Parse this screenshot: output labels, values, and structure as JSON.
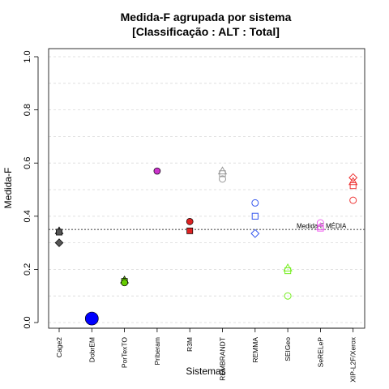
{
  "chart_data": {
    "type": "scatter",
    "title_line1": "Medida-F agrupada por sistema",
    "title_line2": "[Classificação : ALT : Total]",
    "xlabel": "Sistemas",
    "ylabel": "Medida-F",
    "ylim": [
      0,
      1
    ],
    "yticks": [
      "0.0",
      "0.2",
      "0.4",
      "0.6",
      "0.8",
      "1.0"
    ],
    "categories": [
      "Cage2",
      "DobrEM",
      "PorTexTO",
      "Priberam",
      "R3M",
      "REMBRANDT",
      "REMMA",
      "SEIGeo",
      "SeRELeP",
      "XIP-L2F/Xerox"
    ],
    "reference_line": {
      "value": 0.35,
      "label": "Medida-F MÉDIA"
    },
    "grid": true,
    "points": [
      {
        "category": "Cage2",
        "y": 0.345,
        "shape": "triangle",
        "color": "#555555",
        "filled": true
      },
      {
        "category": "Cage2",
        "y": 0.34,
        "shape": "square",
        "color": "#555555",
        "filled": true
      },
      {
        "category": "Cage2",
        "y": 0.3,
        "shape": "diamond",
        "color": "#555555",
        "filled": true
      },
      {
        "category": "DobrEM",
        "y": 0.015,
        "shape": "circle-large",
        "color": "#0000ff",
        "filled": true
      },
      {
        "category": "PorTexTO",
        "y": 0.16,
        "shape": "triangle",
        "color": "#66cc00",
        "filled": true
      },
      {
        "category": "PorTexTO",
        "y": 0.155,
        "shape": "square",
        "color": "#66cc00",
        "filled": true
      },
      {
        "category": "PorTexTO",
        "y": 0.15,
        "shape": "circle",
        "color": "#66cc00",
        "filled": true
      },
      {
        "category": "Priberam",
        "y": 0.57,
        "shape": "circle",
        "color": "#cc33cc",
        "filled": true
      },
      {
        "category": "R3M",
        "y": 0.38,
        "shape": "circle",
        "color": "#dd2222",
        "filled": true
      },
      {
        "category": "R3M",
        "y": 0.345,
        "shape": "square",
        "color": "#dd2222",
        "filled": true
      },
      {
        "category": "REMBRANDT",
        "y": 0.57,
        "shape": "triangle",
        "color": "#999999",
        "filled": false
      },
      {
        "category": "REMBRANDT",
        "y": 0.56,
        "shape": "square",
        "color": "#999999",
        "filled": false
      },
      {
        "category": "REMBRANDT",
        "y": 0.54,
        "shape": "circle",
        "color": "#999999",
        "filled": false
      },
      {
        "category": "REMMA",
        "y": 0.45,
        "shape": "circle",
        "color": "#3355ee",
        "filled": false
      },
      {
        "category": "REMMA",
        "y": 0.4,
        "shape": "square",
        "color": "#3355ee",
        "filled": false
      },
      {
        "category": "REMMA",
        "y": 0.335,
        "shape": "diamond",
        "color": "#3355ee",
        "filled": false
      },
      {
        "category": "SEIGeo",
        "y": 0.205,
        "shape": "triangle",
        "color": "#77ee22",
        "filled": false
      },
      {
        "category": "SEIGeo",
        "y": 0.195,
        "shape": "square",
        "color": "#77ee22",
        "filled": false
      },
      {
        "category": "SEIGeo",
        "y": 0.1,
        "shape": "circle",
        "color": "#77ee22",
        "filled": false
      },
      {
        "category": "SeRELeP",
        "y": 0.375,
        "shape": "circle",
        "color": "#ee66ee",
        "filled": false
      },
      {
        "category": "SeRELeP",
        "y": 0.36,
        "shape": "triangle",
        "color": "#ee66ee",
        "filled": false
      },
      {
        "category": "SeRELeP",
        "y": 0.355,
        "shape": "square",
        "color": "#ee66ee",
        "filled": false
      },
      {
        "category": "XIP-L2F/Xerox",
        "y": 0.545,
        "shape": "diamond",
        "color": "#ee3333",
        "filled": false
      },
      {
        "category": "XIP-L2F/Xerox",
        "y": 0.53,
        "shape": "triangle",
        "color": "#ee3333",
        "filled": false
      },
      {
        "category": "XIP-L2F/Xerox",
        "y": 0.515,
        "shape": "square",
        "color": "#ee3333",
        "filled": false
      },
      {
        "category": "XIP-L2F/Xerox",
        "y": 0.46,
        "shape": "circle",
        "color": "#ee3333",
        "filled": false
      }
    ]
  }
}
